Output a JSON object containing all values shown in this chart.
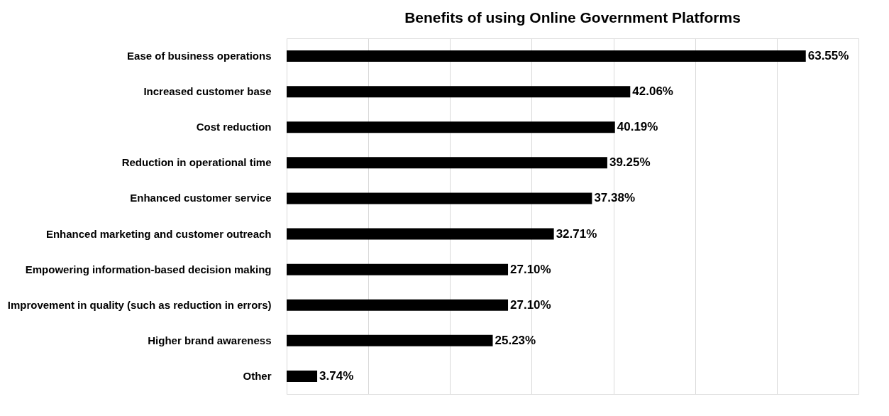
{
  "chart_data": {
    "type": "bar",
    "orientation": "horizontal",
    "title": "Benefits of using Online Government Platforms",
    "categories": [
      "Ease of business operations",
      "Increased customer base",
      "Cost reduction",
      "Reduction in operational time",
      "Enhanced customer service",
      "Enhanced marketing and customer outreach",
      "Empowering information-based decision making",
      "Improvement in quality (such as reduction in errors)",
      "Higher brand awareness",
      "Other"
    ],
    "values": [
      63.55,
      42.06,
      40.19,
      39.25,
      37.38,
      32.71,
      27.1,
      27.1,
      25.23,
      3.74
    ],
    "value_labels": [
      "63.55%",
      "42.06%",
      "40.19%",
      "39.25%",
      "37.38%",
      "32.71%",
      "27.10%",
      "27.10%",
      "25.23%",
      "3.74%"
    ],
    "color": "#000000",
    "xlim": [
      0,
      70
    ],
    "xticks": [
      {
        "value": 0,
        "label": null
      },
      {
        "value": 10,
        "label": null
      },
      {
        "value": 20,
        "label": null
      },
      {
        "value": 30,
        "label": null
      },
      {
        "value": 40,
        "label": null
      },
      {
        "value": 50,
        "label": null
      },
      {
        "value": 60,
        "label": null
      },
      {
        "value": 70,
        "label": null
      }
    ],
    "tick_labels": "y",
    "grid": "x"
  }
}
